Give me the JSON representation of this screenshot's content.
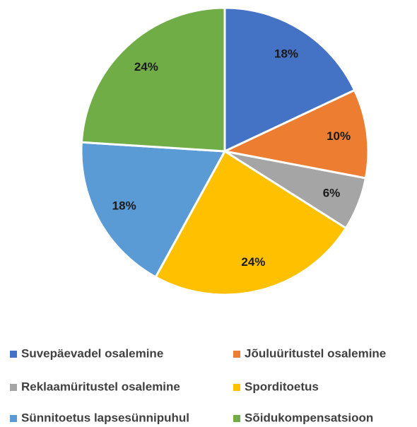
{
  "chart_data": {
    "type": "pie",
    "categories": [
      "Suvepäevadel osalemine",
      "Jõuluüritustel osalemine",
      "Reklaamüritustel osalemine",
      "Sporditoetus",
      "Sünnitoetus lapsesünnipuhul",
      "Sõidukompensatsioon"
    ],
    "values": [
      18,
      10,
      6,
      24,
      18,
      24
    ],
    "value_labels": [
      "18%",
      "10%",
      "6%",
      "24%",
      "18%",
      "24%"
    ],
    "colors": [
      "#4472c4",
      "#ed7d31",
      "#a5a5a5",
      "#ffc000",
      "#5b9bd5",
      "#70ad47"
    ],
    "legend": "bottom"
  }
}
